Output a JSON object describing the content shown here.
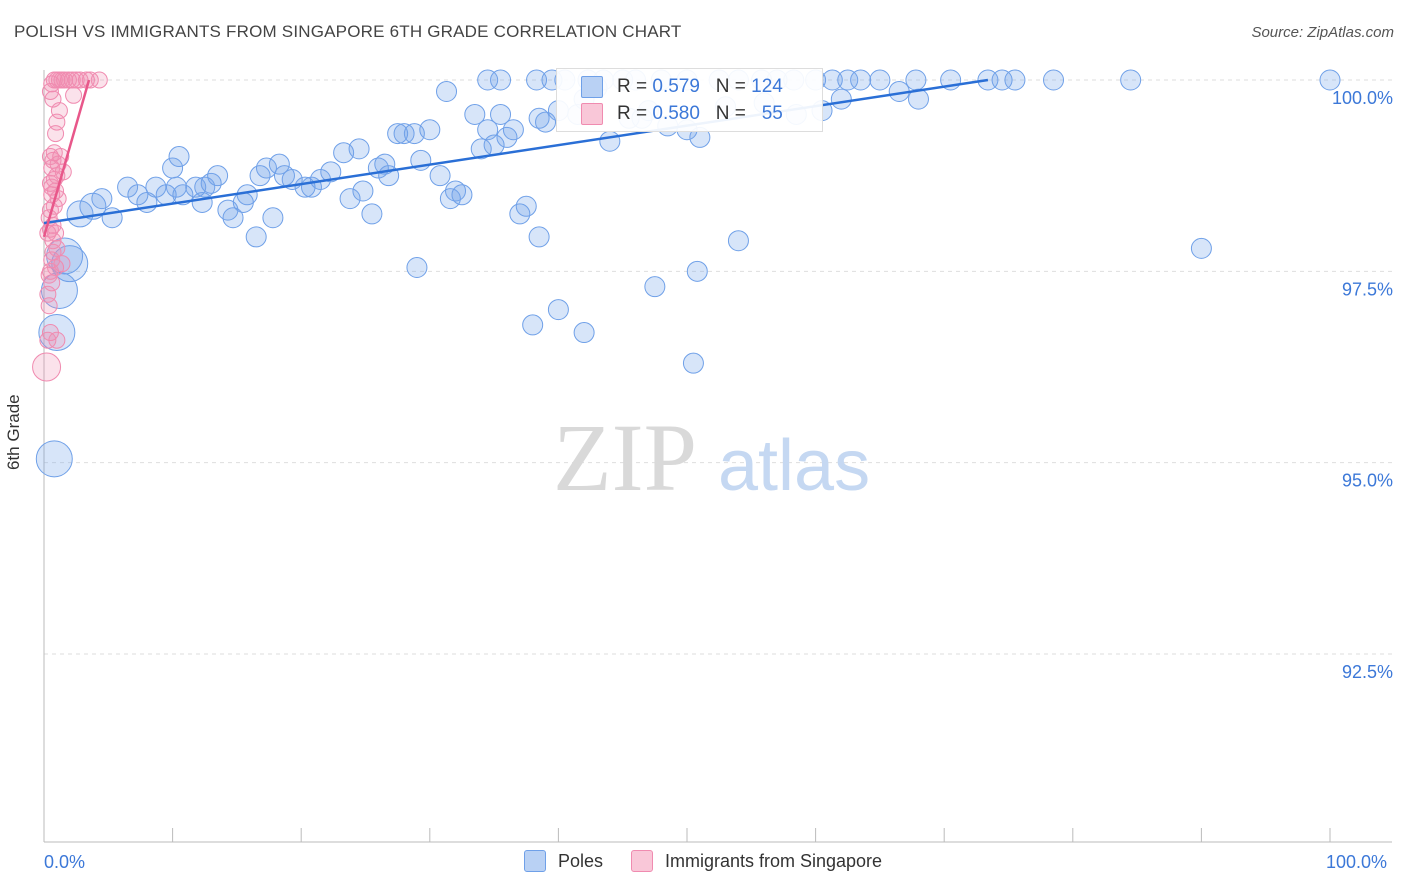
{
  "header": {
    "title": "POLISH VS IMMIGRANTS FROM SINGAPORE 6TH GRADE CORRELATION CHART",
    "source": "Source: ZipAtlas.com"
  },
  "watermark": {
    "zip": "ZIP",
    "atlas": "atlas"
  },
  "stats": {
    "poles": {
      "r_label": "R =",
      "r_value": "0.579",
      "n_label": "N =",
      "n_value": "124"
    },
    "singapore": {
      "r_label": "R =",
      "r_value": "0.580",
      "n_label": "N =",
      "n_value": "55"
    }
  },
  "legend": {
    "poles": "Poles",
    "singapore": "Immigrants from Singapore"
  },
  "colors": {
    "poles": "#6fa0e8",
    "singapore": "#f08bb0",
    "poles_line": "#2a6fd6",
    "singapore_line": "#e8578a",
    "tick_text": "#3c78d8"
  },
  "chart_data": {
    "type": "scatter",
    "title": "POLISH VS IMMIGRANTS FROM SINGAPORE 6TH GRADE CORRELATION CHART",
    "ylabel": "6th Grade",
    "xlabel": "",
    "xlim": [
      0,
      100
    ],
    "ylim": [
      90.2,
      100.25
    ],
    "x_tick_labels": [
      "0.0%",
      "100.0%"
    ],
    "y_ticks": [
      92.5,
      95.0,
      97.5,
      100.0
    ],
    "y_tick_labels": [
      "92.5%",
      "95.0%",
      "97.5%",
      "100.0%"
    ],
    "grid": true,
    "legend_position": "bottom",
    "series": [
      {
        "name": "Poles",
        "trend": [
          [
            0.0,
            98.13
          ],
          [
            73.4,
            100.0
          ]
        ],
        "points": [
          [
            0.8,
            95.05
          ],
          [
            1.0,
            96.7
          ],
          [
            1.2,
            97.25
          ],
          [
            1.6,
            97.7
          ],
          [
            2.0,
            97.6
          ],
          [
            2.8,
            98.25
          ],
          [
            3.8,
            98.35
          ],
          [
            4.5,
            98.45
          ],
          [
            5.3,
            98.2
          ],
          [
            6.5,
            98.6
          ],
          [
            7.3,
            98.5
          ],
          [
            8.0,
            98.4
          ],
          [
            8.7,
            98.6
          ],
          [
            9.5,
            98.5
          ],
          [
            10.0,
            98.85
          ],
          [
            10.3,
            98.6
          ],
          [
            10.5,
            99.0
          ],
          [
            10.8,
            98.5
          ],
          [
            11.8,
            98.6
          ],
          [
            12.3,
            98.4
          ],
          [
            12.5,
            98.6
          ],
          [
            13.0,
            98.65
          ],
          [
            13.5,
            98.75
          ],
          [
            14.3,
            98.3
          ],
          [
            14.7,
            98.2
          ],
          [
            15.5,
            98.4
          ],
          [
            15.8,
            98.5
          ],
          [
            16.5,
            97.95
          ],
          [
            16.8,
            98.75
          ],
          [
            17.3,
            98.85
          ],
          [
            17.8,
            98.2
          ],
          [
            18.3,
            98.9
          ],
          [
            18.7,
            98.75
          ],
          [
            19.3,
            98.7
          ],
          [
            20.3,
            98.6
          ],
          [
            20.8,
            98.6
          ],
          [
            21.5,
            98.7
          ],
          [
            22.3,
            98.8
          ],
          [
            23.3,
            99.05
          ],
          [
            23.8,
            98.45
          ],
          [
            24.5,
            99.1
          ],
          [
            24.8,
            98.55
          ],
          [
            25.5,
            98.25
          ],
          [
            26.0,
            98.85
          ],
          [
            26.5,
            98.9
          ],
          [
            26.8,
            98.75
          ],
          [
            27.5,
            99.3
          ],
          [
            28.0,
            99.3
          ],
          [
            28.8,
            99.3
          ],
          [
            29.3,
            98.95
          ],
          [
            30.0,
            99.35
          ],
          [
            30.8,
            98.75
          ],
          [
            31.3,
            99.85
          ],
          [
            31.6,
            98.45
          ],
          [
            32.0,
            98.55
          ],
          [
            32.5,
            98.5
          ],
          [
            33.5,
            99.55
          ],
          [
            34.0,
            99.1
          ],
          [
            34.5,
            99.35
          ],
          [
            35.0,
            99.15
          ],
          [
            35.5,
            99.55
          ],
          [
            36.0,
            99.25
          ],
          [
            37.0,
            98.25
          ],
          [
            37.5,
            98.35
          ],
          [
            38.5,
            97.95
          ],
          [
            34.5,
            100.0
          ],
          [
            35.5,
            100.0
          ],
          [
            38.3,
            100.0
          ],
          [
            39.5,
            100.0
          ],
          [
            40.5,
            100.0
          ],
          [
            42.3,
            100.0
          ],
          [
            43.5,
            100.0
          ],
          [
            45.0,
            100.0
          ],
          [
            46.0,
            100.0
          ],
          [
            48.0,
            100.0
          ],
          [
            50.0,
            100.0
          ],
          [
            52.5,
            100.0
          ],
          [
            54.0,
            100.0
          ],
          [
            55.8,
            100.0
          ],
          [
            57.0,
            100.0
          ],
          [
            58.3,
            100.0
          ],
          [
            60.0,
            100.0
          ],
          [
            61.3,
            100.0
          ],
          [
            62.5,
            100.0
          ],
          [
            63.5,
            100.0
          ],
          [
            65.0,
            100.0
          ],
          [
            67.8,
            100.0
          ],
          [
            70.5,
            100.0
          ],
          [
            73.4,
            100.0
          ],
          [
            74.5,
            100.0
          ],
          [
            75.5,
            100.0
          ],
          [
            78.5,
            100.0
          ],
          [
            84.5,
            100.0
          ],
          [
            100.0,
            100.0
          ],
          [
            45.5,
            99.5
          ],
          [
            46.5,
            99.5
          ],
          [
            50.0,
            99.35
          ],
          [
            51.0,
            99.25
          ],
          [
            38.5,
            99.5
          ],
          [
            40.0,
            99.6
          ],
          [
            41.5,
            99.55
          ],
          [
            42.0,
            99.75
          ],
          [
            29.0,
            97.55
          ],
          [
            38.0,
            96.8
          ],
          [
            40.0,
            97.0
          ],
          [
            42.0,
            96.7
          ],
          [
            47.5,
            97.3
          ],
          [
            50.5,
            96.3
          ],
          [
            50.8,
            97.5
          ],
          [
            54.0,
            97.9
          ],
          [
            44.0,
            99.2
          ],
          [
            47.0,
            99.6
          ],
          [
            48.5,
            99.4
          ],
          [
            36.5,
            99.35
          ],
          [
            39.0,
            99.45
          ],
          [
            53.0,
            99.65
          ],
          [
            56.0,
            99.7
          ],
          [
            58.5,
            99.55
          ],
          [
            60.5,
            99.6
          ],
          [
            43.0,
            99.9
          ],
          [
            66.5,
            99.85
          ],
          [
            68.0,
            99.75
          ],
          [
            90.0,
            97.8
          ],
          [
            62.0,
            99.75
          ]
        ]
      },
      {
        "name": "Immigrants from Singapore",
        "trend": [
          [
            0.0,
            97.95
          ],
          [
            3.5,
            100.0
          ]
        ],
        "points": [
          [
            0.2,
            96.25
          ],
          [
            0.3,
            96.6
          ],
          [
            0.5,
            96.7
          ],
          [
            0.4,
            97.05
          ],
          [
            0.6,
            97.35
          ],
          [
            0.5,
            97.5
          ],
          [
            0.9,
            97.55
          ],
          [
            0.6,
            97.65
          ],
          [
            0.7,
            97.75
          ],
          [
            1.0,
            97.8
          ],
          [
            0.3,
            98.0
          ],
          [
            0.5,
            98.05
          ],
          [
            0.7,
            98.1
          ],
          [
            0.4,
            98.2
          ],
          [
            0.5,
            98.3
          ],
          [
            0.8,
            98.35
          ],
          [
            0.6,
            98.5
          ],
          [
            0.9,
            98.55
          ],
          [
            0.5,
            98.65
          ],
          [
            0.8,
            98.7
          ],
          [
            1.0,
            98.75
          ],
          [
            0.6,
            98.85
          ],
          [
            1.1,
            98.9
          ],
          [
            0.7,
            98.95
          ],
          [
            0.5,
            99.0
          ],
          [
            0.8,
            99.05
          ],
          [
            1.0,
            99.45
          ],
          [
            1.2,
            99.6
          ],
          [
            0.7,
            99.75
          ],
          [
            0.5,
            99.85
          ],
          [
            0.6,
            99.95
          ],
          [
            0.8,
            100.0
          ],
          [
            1.0,
            100.0
          ],
          [
            1.2,
            100.0
          ],
          [
            1.4,
            100.0
          ],
          [
            1.6,
            100.0
          ],
          [
            1.9,
            100.0
          ],
          [
            2.2,
            100.0
          ],
          [
            2.5,
            100.0
          ],
          [
            2.8,
            100.0
          ],
          [
            3.3,
            100.0
          ],
          [
            3.6,
            100.0
          ],
          [
            4.3,
            100.0
          ],
          [
            1.3,
            99.0
          ],
          [
            1.1,
            98.45
          ],
          [
            0.4,
            97.45
          ],
          [
            1.4,
            97.6
          ],
          [
            2.3,
            99.8
          ],
          [
            0.9,
            99.3
          ],
          [
            0.6,
            98.6
          ],
          [
            1.0,
            96.6
          ],
          [
            0.3,
            97.2
          ],
          [
            0.7,
            97.9
          ],
          [
            1.5,
            98.8
          ],
          [
            0.9,
            98.0
          ]
        ]
      }
    ]
  }
}
